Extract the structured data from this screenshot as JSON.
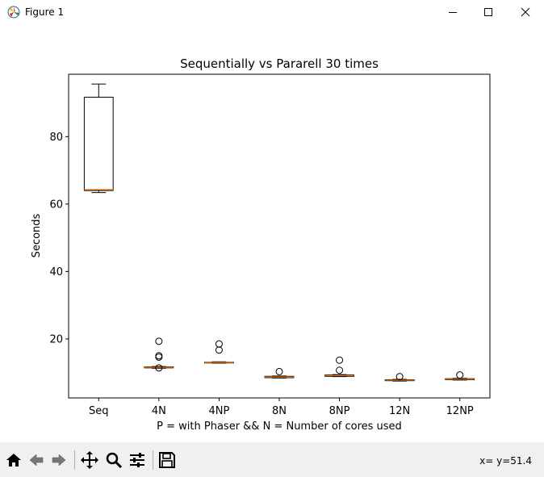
{
  "window": {
    "title": "Figure 1"
  },
  "toolbar": {
    "buttons": [
      "home-icon",
      "back-icon",
      "forward-icon",
      "pan-icon",
      "zoom-icon",
      "configure-subplots-icon",
      "save-icon"
    ],
    "coords_readout": "x= y=51.4"
  },
  "chart_data": {
    "type": "box",
    "title": "Sequentially vs Pararell 30 times",
    "xlabel": "P = with Phaser && N = Number of cores used",
    "ylabel": "Seconds",
    "categories": [
      "Seq",
      "4N",
      "4NP",
      "8N",
      "8NP",
      "12N",
      "12NP"
    ],
    "yticks": [
      20,
      40,
      60,
      80
    ],
    "ylim": [
      2.5,
      98.5
    ],
    "boxes": [
      {
        "label": "Seq",
        "whislo": 63.4,
        "q1": 64.0,
        "med": 64.3,
        "q3": 91.7,
        "whishi": 95.6,
        "fliers": []
      },
      {
        "label": "4N",
        "whislo": 11.3,
        "q1": 11.4,
        "med": 11.55,
        "q3": 11.7,
        "whishi": 11.8,
        "fliers": [
          19.3,
          15.0,
          14.6,
          11.4
        ]
      },
      {
        "label": "4NP",
        "whislo": 12.8,
        "q1": 12.9,
        "med": 13.0,
        "q3": 13.1,
        "whishi": 13.2,
        "fliers": [
          18.5,
          16.7
        ]
      },
      {
        "label": "8N",
        "whislo": 8.4,
        "q1": 8.5,
        "med": 8.7,
        "q3": 8.9,
        "whishi": 9.0,
        "fliers": [
          10.3
        ]
      },
      {
        "label": "8NP",
        "whislo": 8.8,
        "q1": 8.9,
        "med": 9.1,
        "q3": 9.3,
        "whishi": 9.4,
        "fliers": [
          13.7,
          10.7
        ]
      },
      {
        "label": "12N",
        "whislo": 7.5,
        "q1": 7.6,
        "med": 7.75,
        "q3": 7.9,
        "whishi": 8.0,
        "fliers": [
          8.8
        ]
      },
      {
        "label": "12NP",
        "whislo": 7.8,
        "q1": 7.9,
        "med": 8.05,
        "q3": 8.2,
        "whishi": 8.3,
        "fliers": [
          9.3
        ]
      }
    ],
    "colors": {
      "box": "#000000",
      "median": "#ff7f0e",
      "flier": "#000000"
    }
  }
}
